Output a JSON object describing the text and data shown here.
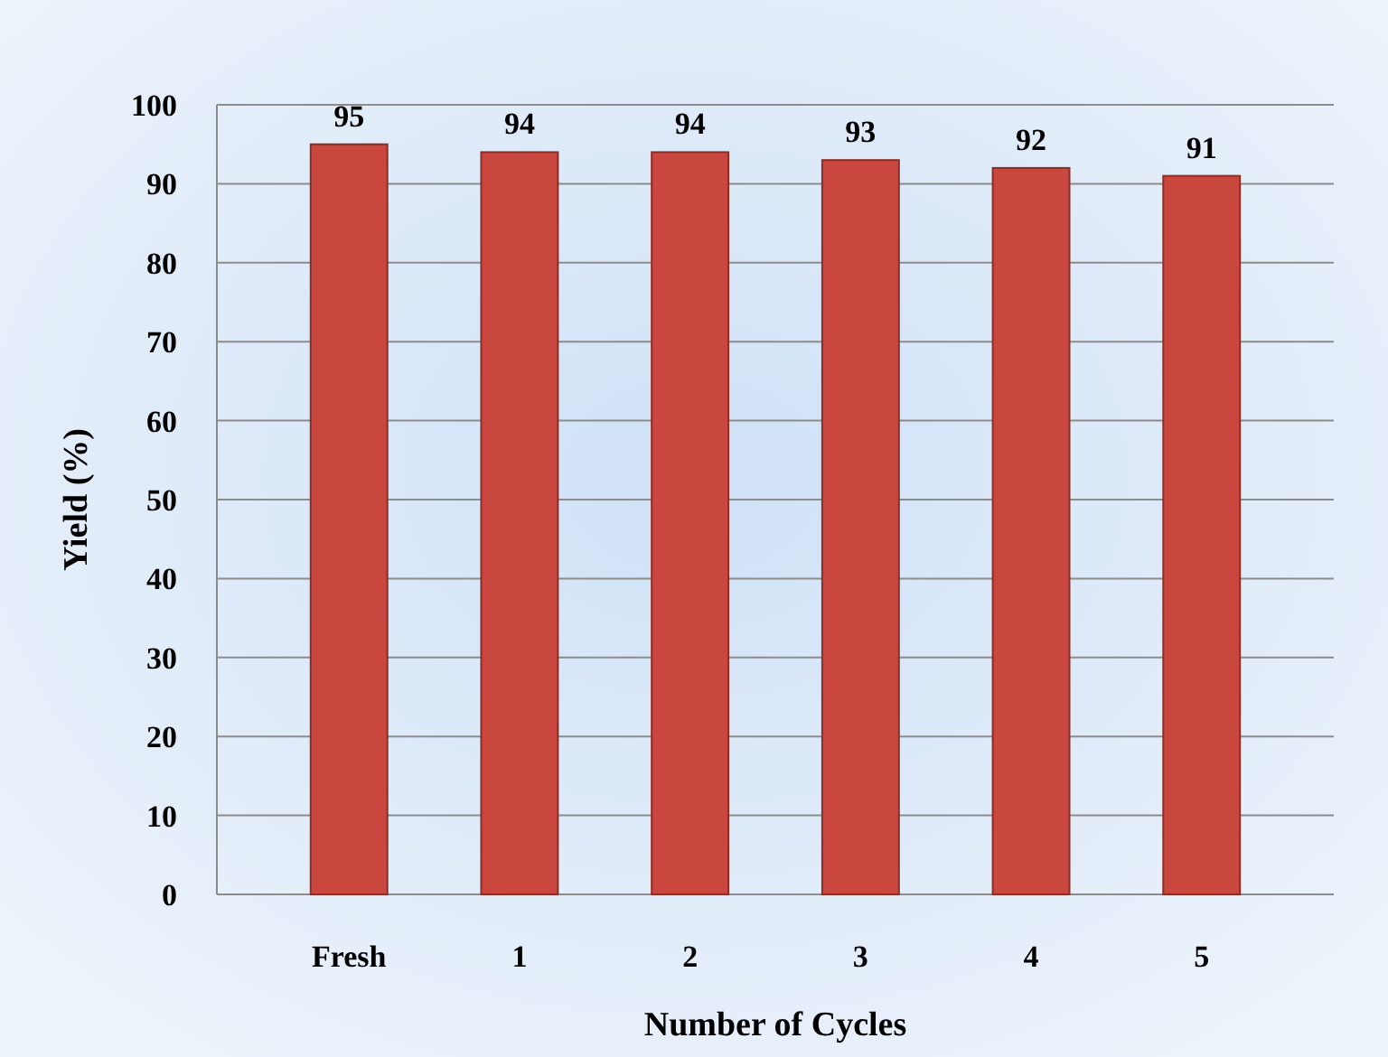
{
  "chart_data": {
    "type": "bar",
    "xlabel": "Number of Cycles",
    "ylabel": "Yield (%)",
    "categories": [
      "Fresh",
      "1",
      "2",
      "3",
      "4",
      "5"
    ],
    "values": [
      95,
      94,
      94,
      93,
      92,
      91
    ],
    "color": "#c9473e",
    "ylim": [
      0,
      100
    ],
    "yticks": [
      0,
      10,
      20,
      30,
      40,
      50,
      60,
      70,
      80,
      90,
      100
    ],
    "grid": "y",
    "data_labels": true
  }
}
